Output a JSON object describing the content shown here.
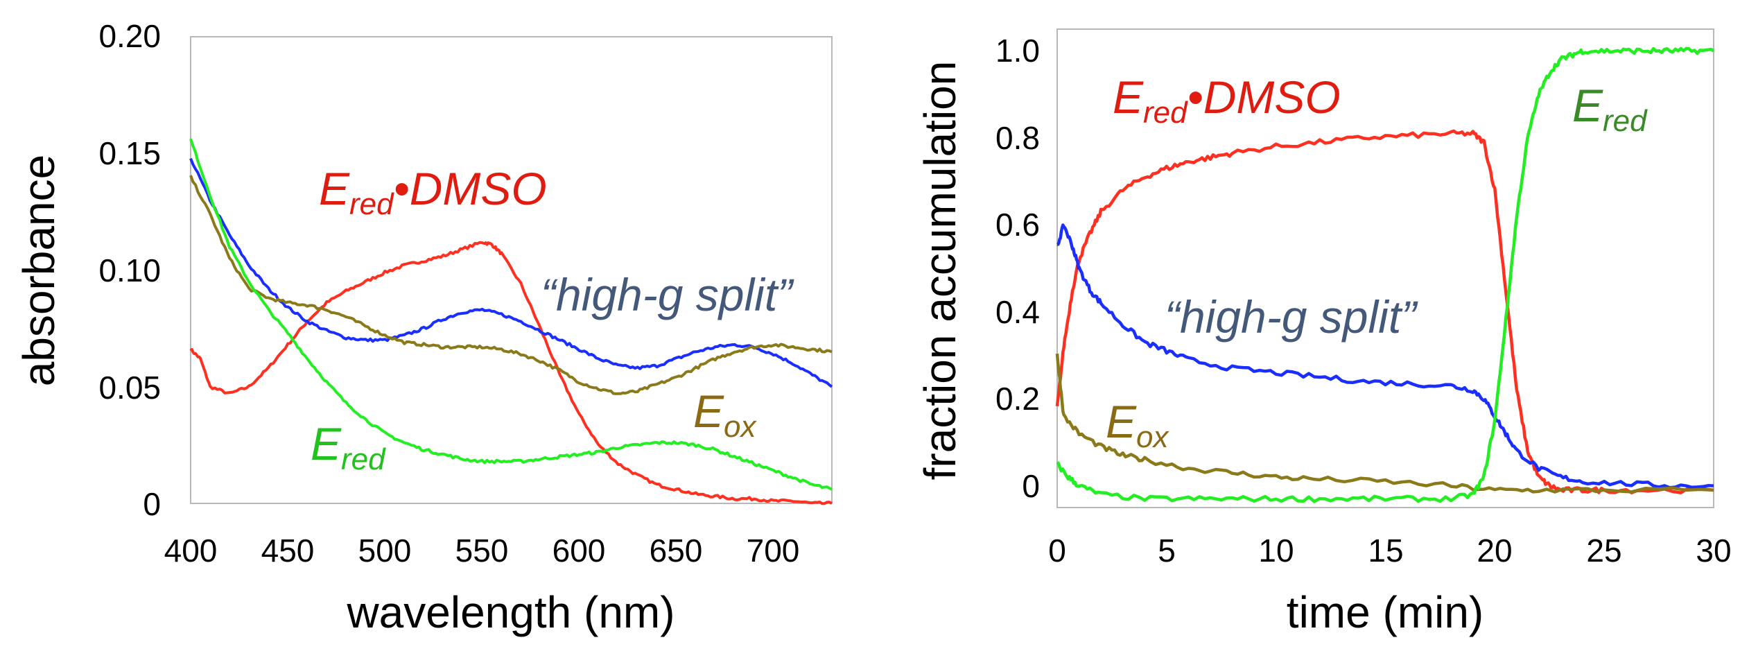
{
  "chart_data": [
    {
      "type": "line",
      "xlabel": "wavelength (nm)",
      "ylabel": "absorbance",
      "xlim": [
        400,
        730
      ],
      "ylim": [
        0,
        0.2
      ],
      "xticks": [
        "400",
        "450",
        "500",
        "550",
        "600",
        "650",
        "700"
      ],
      "yticks": [
        "0",
        "0.05",
        "0.10",
        "0.15",
        "0.20"
      ],
      "grid": false,
      "annotations": {
        "ered_dmso": {
          "main": "E",
          "sub": "red",
          "bullet": "•",
          "rest": "DMSO"
        },
        "high_g": "“high-g split”",
        "eox": {
          "main": "E",
          "sub": "ox"
        },
        "ered": {
          "main": "E",
          "sub": "red"
        }
      },
      "series": [
        {
          "name": "Ered•DMSO",
          "color": "#ff3020",
          "x": [
            400,
            405,
            410,
            420,
            430,
            440,
            450,
            460,
            470,
            480,
            490,
            500,
            510,
            520,
            530,
            540,
            550,
            555,
            560,
            570,
            580,
            590,
            600,
            610,
            620,
            630,
            640,
            650,
            660,
            670,
            680,
            690,
            700,
            710,
            720,
            730
          ],
          "y": [
            0.066,
            0.062,
            0.05,
            0.047,
            0.05,
            0.058,
            0.068,
            0.078,
            0.086,
            0.091,
            0.095,
            0.099,
            0.102,
            0.104,
            0.106,
            0.109,
            0.112,
            0.111,
            0.107,
            0.094,
            0.075,
            0.055,
            0.038,
            0.025,
            0.017,
            0.012,
            0.008,
            0.006,
            0.004,
            0.003,
            0.002,
            0.002,
            0.001,
            0.001,
            0.0,
            0.0
          ]
        },
        {
          "name": "high-g split",
          "color": "#1a2fff",
          "x": [
            400,
            410,
            420,
            430,
            440,
            450,
            460,
            470,
            480,
            490,
            500,
            510,
            520,
            530,
            540,
            550,
            560,
            570,
            580,
            590,
            600,
            610,
            620,
            630,
            640,
            650,
            660,
            670,
            680,
            690,
            700,
            710,
            720,
            730
          ],
          "y": [
            0.148,
            0.13,
            0.115,
            0.102,
            0.092,
            0.084,
            0.078,
            0.074,
            0.071,
            0.07,
            0.07,
            0.072,
            0.075,
            0.079,
            0.082,
            0.083,
            0.081,
            0.078,
            0.074,
            0.07,
            0.066,
            0.062,
            0.059,
            0.058,
            0.059,
            0.062,
            0.065,
            0.067,
            0.068,
            0.067,
            0.064,
            0.06,
            0.055,
            0.05
          ]
        },
        {
          "name": "Eox",
          "color": "#8a7a1a",
          "x": [
            400,
            410,
            420,
            430,
            440,
            450,
            460,
            470,
            480,
            490,
            500,
            510,
            520,
            530,
            540,
            550,
            560,
            570,
            580,
            590,
            600,
            610,
            620,
            630,
            640,
            650,
            660,
            670,
            680,
            690,
            700,
            710,
            720,
            730
          ],
          "y": [
            0.14,
            0.124,
            0.105,
            0.092,
            0.088,
            0.086,
            0.085,
            0.083,
            0.08,
            0.076,
            0.072,
            0.069,
            0.068,
            0.067,
            0.067,
            0.067,
            0.066,
            0.064,
            0.061,
            0.057,
            0.052,
            0.049,
            0.047,
            0.048,
            0.051,
            0.054,
            0.058,
            0.062,
            0.065,
            0.067,
            0.068,
            0.067,
            0.066,
            0.065
          ]
        },
        {
          "name": "Ered",
          "color": "#22ee22",
          "x": [
            400,
            410,
            420,
            430,
            440,
            450,
            460,
            470,
            480,
            490,
            500,
            510,
            520,
            530,
            540,
            550,
            560,
            570,
            580,
            590,
            600,
            610,
            620,
            630,
            640,
            650,
            660,
            670,
            680,
            690,
            700,
            710,
            720,
            730
          ],
          "y": [
            0.156,
            0.132,
            0.11,
            0.095,
            0.083,
            0.073,
            0.062,
            0.052,
            0.043,
            0.036,
            0.03,
            0.026,
            0.023,
            0.021,
            0.019,
            0.018,
            0.018,
            0.018,
            0.019,
            0.02,
            0.021,
            0.022,
            0.024,
            0.025,
            0.026,
            0.026,
            0.025,
            0.023,
            0.02,
            0.017,
            0.014,
            0.011,
            0.008,
            0.006
          ]
        }
      ]
    },
    {
      "type": "line",
      "xlabel": "time (min)",
      "ylabel": "fraction accumulation",
      "xlim": [
        0,
        30
      ],
      "ylim": [
        -0.05,
        1.05
      ],
      "xticks": [
        "0",
        "5",
        "10",
        "15",
        "20",
        "25",
        "30"
      ],
      "yticks": [
        "0",
        "0.2",
        "0.4",
        "0.6",
        "0.8",
        "1.0"
      ],
      "grid": false,
      "annotations": {
        "ered_dmso": {
          "main": "E",
          "sub": "red",
          "bullet": "•",
          "rest": "DMSO"
        },
        "high_g": "“high-g split”",
        "eox": {
          "main": "E",
          "sub": "ox"
        },
        "ered": {
          "main": "E",
          "sub": "red"
        }
      },
      "series": [
        {
          "name": "Ered•DMSO",
          "color": "#ff3020",
          "x": [
            0,
            0.3,
            0.7,
            1,
            1.5,
            2,
            3,
            4,
            5,
            6,
            7,
            8,
            10,
            12,
            14,
            16,
            18,
            19,
            19.5,
            20,
            20.5,
            21,
            21.5,
            22,
            22.5,
            23,
            24,
            25,
            27,
            30
          ],
          "y": [
            0.18,
            0.32,
            0.45,
            0.52,
            0.58,
            0.63,
            0.68,
            0.71,
            0.73,
            0.745,
            0.755,
            0.765,
            0.78,
            0.79,
            0.8,
            0.805,
            0.81,
            0.81,
            0.79,
            0.68,
            0.45,
            0.22,
            0.08,
            0.02,
            0.0,
            -0.01,
            -0.01,
            -0.01,
            -0.01,
            -0.01
          ]
        },
        {
          "name": "high-g split",
          "color": "#1a2fff",
          "x": [
            0,
            0.3,
            0.7,
            1,
            1.5,
            2,
            3,
            4,
            5,
            6,
            8,
            10,
            12,
            14,
            16,
            18,
            19,
            19.5,
            20,
            20.5,
            21,
            22,
            23,
            24,
            26,
            28,
            30
          ],
          "y": [
            0.55,
            0.6,
            0.55,
            0.5,
            0.45,
            0.42,
            0.37,
            0.33,
            0.31,
            0.29,
            0.27,
            0.26,
            0.25,
            0.24,
            0.235,
            0.23,
            0.22,
            0.2,
            0.16,
            0.12,
            0.08,
            0.04,
            0.02,
            0.01,
            0.005,
            0.0,
            0.0
          ]
        },
        {
          "name": "Eox",
          "color": "#8a7a1a",
          "x": [
            0,
            0.3,
            1,
            2,
            3,
            4,
            6,
            8,
            10,
            12,
            15,
            18,
            20,
            22,
            25,
            30
          ],
          "y": [
            0.3,
            0.16,
            0.12,
            0.09,
            0.07,
            0.06,
            0.04,
            0.03,
            0.02,
            0.015,
            0.01,
            0.0,
            -0.01,
            -0.01,
            -0.01,
            -0.01
          ]
        },
        {
          "name": "Ered",
          "color": "#22ee22",
          "x": [
            0,
            0.5,
            1,
            2,
            4,
            6,
            8,
            10,
            12,
            14,
            16,
            18,
            19,
            19.5,
            20,
            20.5,
            21,
            21.5,
            22,
            22.5,
            23,
            23.5,
            24,
            25,
            26,
            27,
            28,
            29,
            30
          ],
          "y": [
            0.05,
            0.02,
            0.0,
            -0.02,
            -0.03,
            -0.03,
            -0.03,
            -0.03,
            -0.03,
            -0.03,
            -0.03,
            -0.03,
            -0.02,
            0.02,
            0.15,
            0.38,
            0.62,
            0.8,
            0.9,
            0.95,
            0.98,
            0.99,
            1.0,
            1.0,
            1.0,
            1.0,
            1.0,
            1.0,
            1.0
          ]
        }
      ]
    }
  ]
}
